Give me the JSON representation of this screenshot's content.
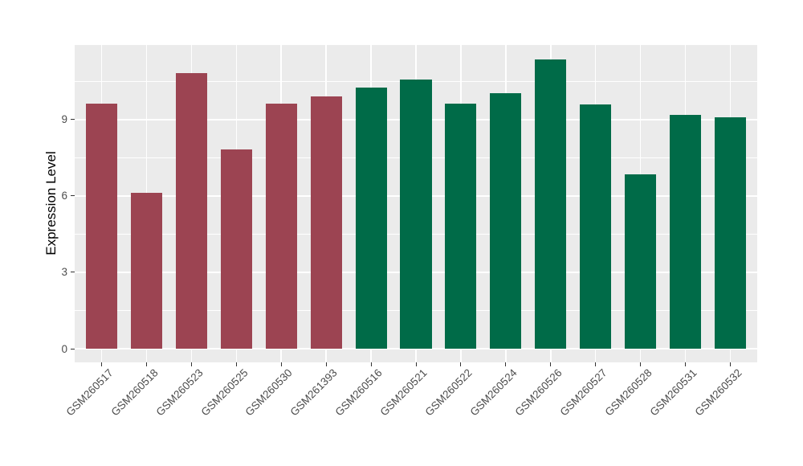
{
  "chart_data": {
    "type": "bar",
    "title": "",
    "xlabel": "",
    "ylabel": "Expression Level",
    "categories": [
      "GSM260517",
      "GSM260518",
      "GSM260523",
      "GSM260525",
      "GSM260530",
      "GSM261393",
      "GSM260516",
      "GSM260521",
      "GSM260522",
      "GSM260524",
      "GSM260526",
      "GSM260527",
      "GSM260528",
      "GSM260531",
      "GSM260532"
    ],
    "values": [
      9.63,
      6.13,
      10.83,
      7.83,
      9.62,
      9.93,
      10.25,
      10.58,
      9.63,
      10.04,
      11.36,
      9.61,
      6.86,
      9.19,
      9.09
    ],
    "bar_colors": [
      "#9C4452",
      "#9C4452",
      "#9C4452",
      "#9C4452",
      "#9C4452",
      "#9C4452",
      "#006B48",
      "#006B48",
      "#006B48",
      "#006B48",
      "#006B48",
      "#006B48",
      "#006B48",
      "#006B48",
      "#006B48"
    ],
    "yticks": [
      0,
      3,
      6,
      9
    ],
    "ytick_labels": [
      "0",
      "3",
      "6",
      "9"
    ],
    "minor_yticks": [
      1.5,
      4.5,
      7.5,
      10.5
    ],
    "ylim": [
      -0.55,
      11.95
    ],
    "grid": "on",
    "legend_position": "none",
    "panel_bg": "#EBEBEB",
    "grid_color": "#FFFFFF",
    "tick_color": "#333333",
    "axis_text_color": "#4D4D4D",
    "axis_title_color": "#000000",
    "figure_bg": "#FFFFFF"
  }
}
